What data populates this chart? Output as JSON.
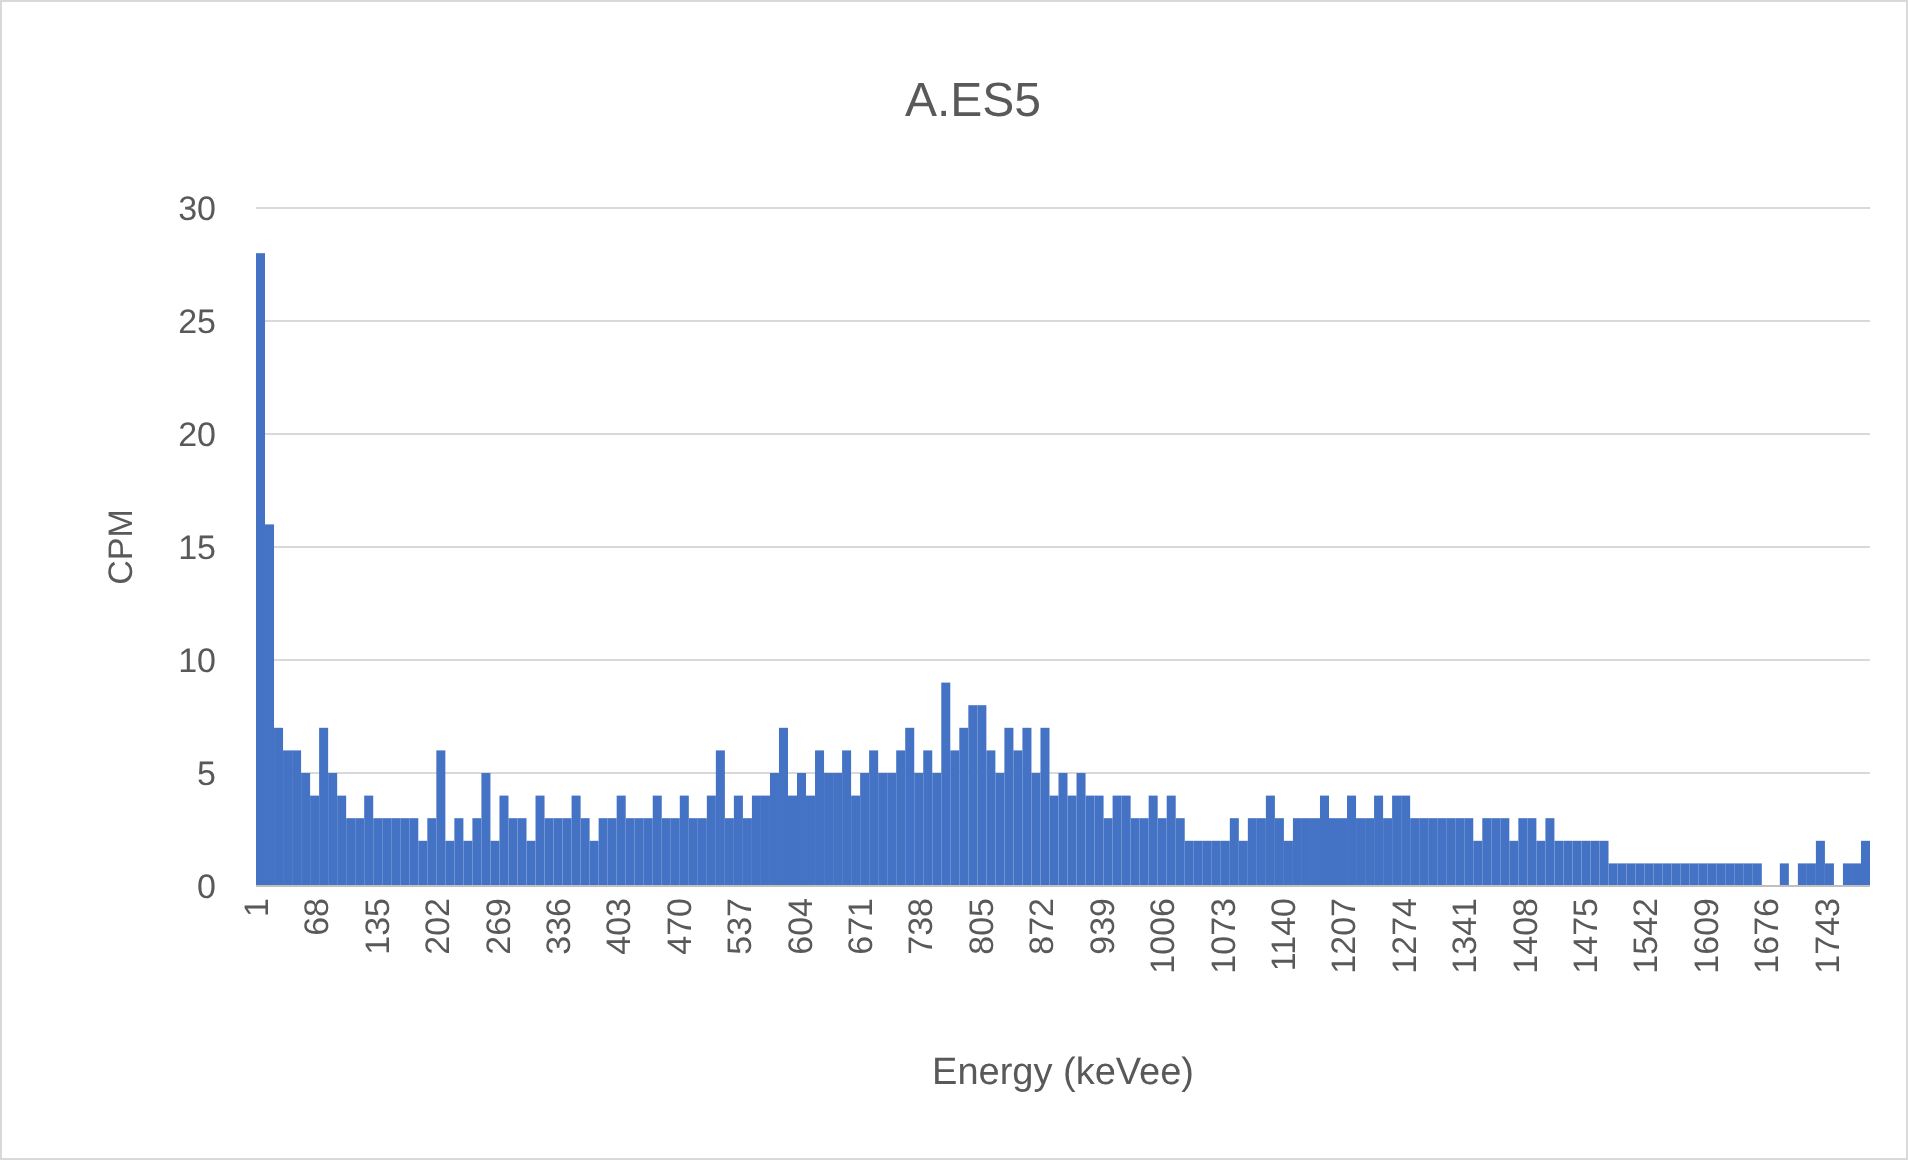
{
  "chart_data": {
    "type": "histogram",
    "title": "A.ES5",
    "xlabel": "Energy (keVee)",
    "ylabel": "CPM",
    "color": "#4472c4",
    "bins": [
      1,
      11,
      21,
      31,
      41,
      51,
      61,
      71,
      81,
      91,
      101,
      111,
      121,
      131,
      141,
      151,
      161,
      171,
      181,
      191,
      201,
      211,
      221,
      231,
      241,
      251,
      261,
      271,
      281,
      291,
      301,
      311,
      321,
      331,
      341,
      351,
      361,
      371,
      381,
      391,
      401,
      411,
      421,
      431,
      441,
      451,
      461,
      471,
      481,
      491,
      501,
      511,
      521,
      531,
      541,
      551,
      561,
      571,
      581,
      591,
      601,
      611,
      621,
      631,
      641,
      651,
      661,
      671,
      681,
      691,
      701,
      711,
      721,
      731,
      741,
      751,
      761,
      771,
      781,
      791,
      801,
      811,
      821,
      831,
      841,
      851,
      861,
      871,
      881,
      891,
      901,
      911,
      921,
      931,
      941,
      951,
      961,
      971,
      981,
      991,
      1001,
      1011,
      1021,
      1031,
      1041,
      1051,
      1061,
      1071,
      1081,
      1091,
      1101,
      1111,
      1121,
      1131,
      1141,
      1151,
      1161,
      1171,
      1181,
      1191,
      1201,
      1211,
      1221,
      1231,
      1241,
      1251,
      1261,
      1271,
      1281,
      1291,
      1301,
      1311,
      1321,
      1331,
      1341,
      1351,
      1361,
      1371,
      1381,
      1391,
      1401,
      1411,
      1421,
      1431,
      1441,
      1451,
      1461,
      1471,
      1481,
      1491,
      1501,
      1511,
      1521,
      1531,
      1541,
      1551,
      1561,
      1571,
      1581,
      1591,
      1601,
      1611,
      1621,
      1631,
      1641,
      1651,
      1661,
      1671,
      1681,
      1691,
      1701,
      1711,
      1721,
      1731,
      1741,
      1751,
      1761,
      1771,
      1781,
      1791
    ],
    "values": [
      28,
      16,
      7,
      6,
      6,
      5,
      4,
      7,
      5,
      4,
      3,
      3,
      4,
      3,
      3,
      3,
      3,
      3,
      2,
      3,
      6,
      2,
      3,
      2,
      3,
      5,
      2,
      4,
      3,
      3,
      2,
      4,
      3,
      3,
      3,
      4,
      3,
      2,
      3,
      3,
      4,
      3,
      3,
      3,
      4,
      3,
      3,
      4,
      3,
      3,
      4,
      6,
      3,
      4,
      3,
      4,
      4,
      5,
      7,
      4,
      5,
      4,
      6,
      5,
      5,
      6,
      4,
      5,
      6,
      5,
      5,
      6,
      7,
      5,
      6,
      5,
      9,
      6,
      7,
      8,
      8,
      6,
      5,
      7,
      6,
      7,
      5,
      7,
      4,
      5,
      4,
      5,
      4,
      4,
      3,
      4,
      4,
      3,
      3,
      4,
      3,
      4,
      3,
      2,
      2,
      2,
      2,
      2,
      3,
      2,
      3,
      3,
      4,
      3,
      2,
      3,
      3,
      3,
      4,
      3,
      3,
      4,
      3,
      3,
      4,
      3,
      4,
      4,
      3,
      3,
      3,
      3,
      3,
      3,
      3,
      2,
      3,
      3,
      3,
      2,
      3,
      3,
      2,
      3,
      2,
      2,
      2,
      2,
      2,
      2,
      1,
      1,
      1,
      1,
      1,
      1,
      1,
      1,
      1,
      1,
      1,
      1,
      1,
      1,
      1,
      1,
      1,
      0,
      0,
      1,
      0,
      1,
      1,
      2,
      1,
      0,
      1,
      1,
      2
    ],
    "xlim": [
      1,
      1791
    ],
    "xticks": [
      1,
      68,
      135,
      202,
      269,
      336,
      403,
      470,
      537,
      604,
      671,
      738,
      805,
      872,
      939,
      1006,
      1073,
      1140,
      1207,
      1274,
      1341,
      1408,
      1475,
      1542,
      1609,
      1676,
      1743
    ],
    "ylim": [
      0,
      30
    ],
    "yticks": [
      0,
      5,
      10,
      15,
      20,
      25,
      30
    ],
    "grid": "y"
  }
}
